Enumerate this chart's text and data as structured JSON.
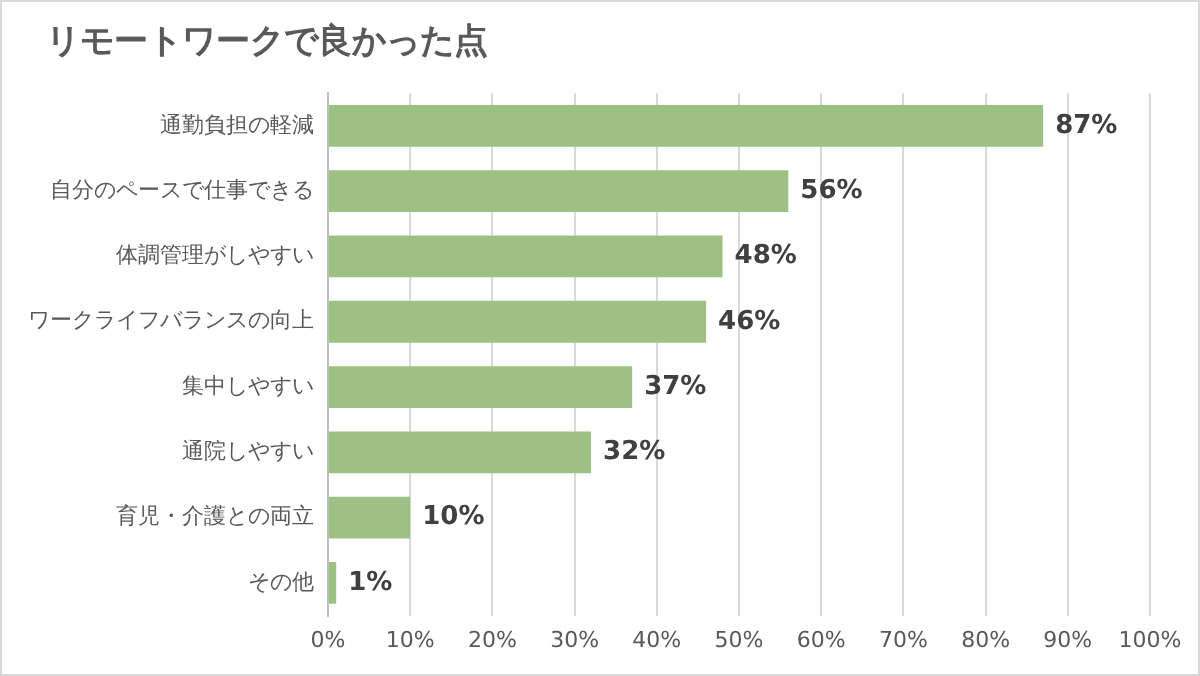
{
  "chart_data": {
    "type": "bar",
    "orientation": "horizontal",
    "title": "リモートワークで良かった点",
    "categories": [
      "通勤負担の軽減",
      "自分のペースで仕事できる",
      "体調管理がしやすい",
      "ワークライフバランスの向上",
      "集中しやすい",
      "通院しやすい",
      "育児・介護との両立",
      "その他"
    ],
    "values": [
      87,
      56,
      48,
      46,
      37,
      32,
      10,
      1
    ],
    "value_labels": [
      "87%",
      "56%",
      "48%",
      "46%",
      "37%",
      "32%",
      "10%",
      "1%"
    ],
    "color": "#9dc183",
    "xlim": [
      0,
      100
    ],
    "xticks": [
      {
        "value": 0,
        "label": "0%"
      },
      {
        "value": 10,
        "label": "10%"
      },
      {
        "value": 20,
        "label": "20%"
      },
      {
        "value": 30,
        "label": "30%"
      },
      {
        "value": 40,
        "label": "40%"
      },
      {
        "value": 50,
        "label": "50%"
      },
      {
        "value": 60,
        "label": "60%"
      },
      {
        "value": 70,
        "label": "70%"
      },
      {
        "value": 80,
        "label": "80%"
      },
      {
        "value": 90,
        "label": "90%"
      },
      {
        "value": 100,
        "label": "100%"
      }
    ],
    "grid": "x",
    "legend": false
  }
}
